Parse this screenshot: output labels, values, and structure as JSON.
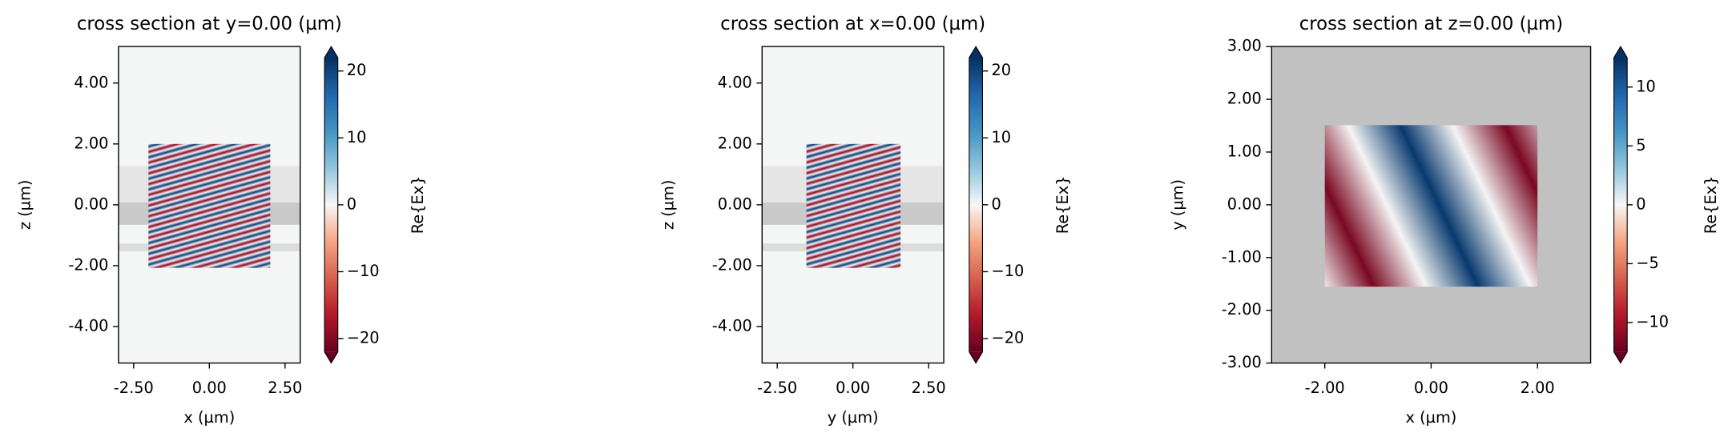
{
  "chart_data": [
    {
      "type": "heatmap",
      "title": "cross section at y=0.00 (µm)",
      "x_label": "x (µm)",
      "y_label": "z (µm)",
      "xlim": [
        -3,
        3
      ],
      "ylim": [
        -5.2,
        5.2
      ],
      "xticks": [
        {
          "value": -2.5,
          "label": "-2.50"
        },
        {
          "value": 0,
          "label": "0.00"
        },
        {
          "value": 2.5,
          "label": "2.50"
        }
      ],
      "yticks": [
        {
          "value": -4,
          "label": "-4.00"
        },
        {
          "value": -2,
          "label": "-2.00"
        },
        {
          "value": 0,
          "label": "0.00"
        },
        {
          "value": 2,
          "label": "2.00"
        },
        {
          "value": 4,
          "label": "4.00"
        }
      ],
      "colorbar": {
        "label": "Re{Ex}",
        "vlim": [
          -22,
          22
        ],
        "ticks": [
          {
            "value": -20,
            "label": "−20"
          },
          {
            "value": -10,
            "label": "−10"
          },
          0,
          10,
          20
        ]
      }
    },
    {
      "type": "heatmap",
      "title": "cross section at x=0.00 (µm)",
      "x_label": "y (µm)",
      "y_label": "z (µm)",
      "xlim": [
        -3,
        3
      ],
      "ylim": [
        -5.2,
        5.2
      ],
      "xticks": [
        {
          "value": -2.5,
          "label": "-2.50"
        },
        {
          "value": 0,
          "label": "0.00"
        },
        {
          "value": 2.5,
          "label": "2.50"
        }
      ],
      "yticks": [
        {
          "value": -4,
          "label": "-4.00"
        },
        {
          "value": -2,
          "label": "-2.00"
        },
        {
          "value": 0,
          "label": "0.00"
        },
        {
          "value": 2,
          "label": "2.00"
        },
        {
          "value": 4,
          "label": "4.00"
        }
      ],
      "colorbar": {
        "label": "Re{Ex}",
        "vlim": [
          -22,
          22
        ],
        "ticks": [
          {
            "value": -20,
            "label": "−20"
          },
          {
            "value": -10,
            "label": "−10"
          },
          0,
          10,
          20
        ]
      }
    },
    {
      "type": "heatmap",
      "title": "cross section at z=0.00 (µm)",
      "x_label": "x (µm)",
      "y_label": "y (µm)",
      "xlim": [
        -3,
        3
      ],
      "ylim": [
        -3,
        3
      ],
      "xticks": [
        {
          "value": -2,
          "label": "-2.00"
        },
        {
          "value": 0,
          "label": "0.00"
        },
        {
          "value": 2,
          "label": "2.00"
        }
      ],
      "yticks": [
        {
          "value": -3,
          "label": "-3.00"
        },
        {
          "value": -2,
          "label": "-2.00"
        },
        {
          "value": -1,
          "label": "-1.00"
        },
        {
          "value": 0,
          "label": "0.00"
        },
        {
          "value": 1,
          "label": "1.00"
        },
        {
          "value": 2,
          "label": "2.00"
        },
        {
          "value": 3,
          "label": "3.00"
        }
      ],
      "colorbar": {
        "label": "Re{Ex}",
        "vlim": [
          -12.5,
          12.5
        ],
        "ticks": [
          {
            "value": -10,
            "label": "−10"
          },
          {
            "value": -5,
            "label": "−5"
          },
          0,
          5,
          10
        ]
      }
    }
  ]
}
